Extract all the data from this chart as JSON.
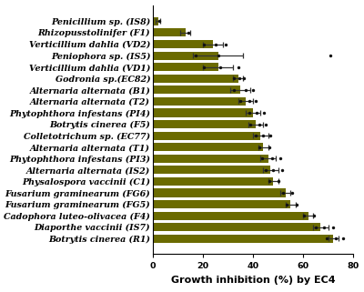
{
  "categories": [
    "Penicillium sp. (IS8)",
    "Rhizopusstolinifer (F1)",
    "Verticillium dahlia (VD2)",
    "Peniophora sp. (IS5)",
    "Verticillium dahlia (VD1)",
    "Godronia sp.(EC82)",
    "Alternaria alternata (B1)",
    "Alternaria alternata (T2)",
    "Phytophthora infestans (PI4)",
    "Botrytis cinerea (F5)",
    "Colletotrichum sp. (EC77)",
    "Alternaria alternata (T1)",
    "Phytophthora infestans (PI3)",
    "Alternaria alternata (IS2)",
    "Physalospora vaccinii (C1)",
    "Fusarium graminearum (FG6)",
    "Fusarium graminearum (FG5)",
    "Cadophora luteo-olivacea (F4)",
    "Diaporthe vaccinii (IS7)",
    "Botrytis cinerea (R1)"
  ],
  "values": [
    2,
    13,
    24,
    26,
    26,
    34,
    35,
    37,
    40,
    41,
    43,
    44,
    46,
    47,
    48,
    53,
    55,
    62,
    67,
    72
  ],
  "errors": [
    1,
    2,
    4,
    10,
    6,
    2,
    4,
    3,
    3,
    3,
    3,
    2,
    3,
    3,
    2,
    2,
    2,
    2,
    3,
    2
  ],
  "scatter_points": [
    [
      2.5
    ],
    [
      14.0
    ],
    [
      20.5,
      25.0,
      29.0
    ],
    [
      17.0,
      26.0,
      71.0
    ],
    [
      20.5,
      27.0,
      34.0
    ],
    [
      32.5,
      34.5,
      36.5
    ],
    [
      32.5,
      37.0,
      40.0
    ],
    [
      35.0,
      38.5,
      41.0
    ],
    [
      38.5,
      41.5,
      44.5
    ],
    [
      39.0,
      42.5,
      45.0
    ],
    [
      41.0,
      44.0,
      47.0
    ],
    [
      42.5,
      46.5
    ],
    [
      43.5,
      47.5,
      51.0
    ],
    [
      45.0,
      48.0,
      51.5
    ],
    [
      46.5,
      50.0
    ],
    [
      52.0,
      55.5
    ],
    [
      53.5,
      57.5
    ],
    [
      60.5,
      64.5
    ],
    [
      65.0,
      68.5,
      72.0
    ],
    [
      69.5,
      73.0,
      76.0
    ]
  ],
  "bar_color": "#6b6b00",
  "error_color": "#555555",
  "scatter_color": "#111111",
  "xlabel": "Growth inhibition (%) by EC4",
  "xlim": [
    0,
    80
  ],
  "xticks": [
    0,
    20,
    40,
    60,
    80
  ],
  "bar_height": 0.72,
  "label_fontsize": 7.5,
  "tick_fontsize": 6.8,
  "ylabel_fontsize": 8.0,
  "xlabel_fontsize": 8.0
}
